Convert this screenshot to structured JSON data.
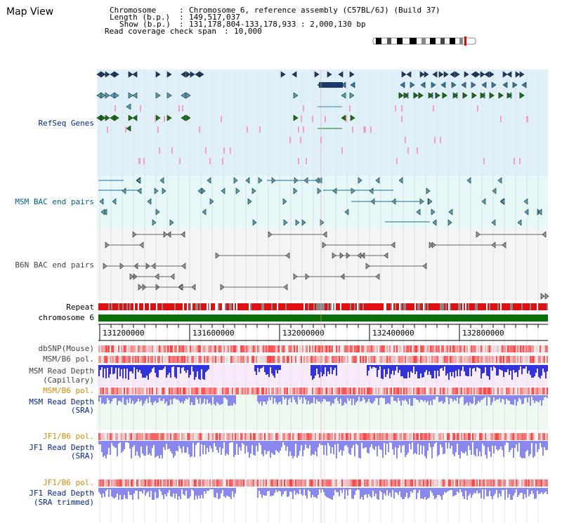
{
  "view": {
    "title": "Map View"
  },
  "info": {
    "chromosome_key": "Chromosome",
    "chromosome_value": "Chromosome 6, reference assembly (C57BL/6J) (Build 37)",
    "length_key": "Length (b.p.)",
    "length_value": "149,517,037",
    "show_key": "Show (b.p.)",
    "show_value": "131,178,804-133,178,933 : 2,000,130 bp",
    "coverage_key": "Read coverage check span",
    "coverage_value": "10,000"
  },
  "ruler": {
    "ticks": [
      "131200000",
      "131600000",
      "132000000",
      "132400000",
      "132800000"
    ]
  },
  "tracks": {
    "refseq": "RefSeq Genes",
    "msm_bac": "MSM BAC end pairs",
    "b6n_bac": "B6N BAC end pairs",
    "repeat": "Repeat",
    "chromosome": "chromosome 6",
    "dbsnp": "dbSNP(Mouse)",
    "msm_b6_pol_1": "MSM/B6 pol.",
    "msm_cap_1": "MSM Read Depth",
    "msm_cap_2": "(Capillary)",
    "msm_b6_pol_2": "MSM/B6 pol.",
    "msm_sra_1": "MSM Read Depth",
    "msm_sra_2": "(SRA)",
    "jf1_b6_pol_1": "JF1/B6 pol.",
    "jf1_sra_1": "JF1 Read Depth",
    "jf1_sra_2": "(SRA)",
    "jf1_b6_pol_2": "JF1/B6 pol.",
    "jf1_trim_1": "JF1 Read Depth",
    "jf1_trim_2": "(SRA trimmed)"
  },
  "colors": {
    "refseq_bg": "#e0f0f8",
    "msm_bg": "#e6f8f8",
    "b6n_bg": "#f4f4f4",
    "gene_dark": "#1a3a6a",
    "gene_mid": "#2f7faf",
    "gene_light": "#4f9fbf",
    "gene_green": "#117711",
    "pink": "#f4a0c0",
    "msm_pair": "#1a6e8a",
    "b6n_pair": "#666666",
    "repeat_red": "#e01010",
    "repeat_gray": "#888888",
    "chromosome_green": "#0a6e0a",
    "depth_blue": "#3333dd",
    "depth_light": "#8888ee",
    "label_navy": "#002299",
    "label_teal": "#006080",
    "label_gray": "#444444",
    "label_orange": "#dd8800"
  }
}
